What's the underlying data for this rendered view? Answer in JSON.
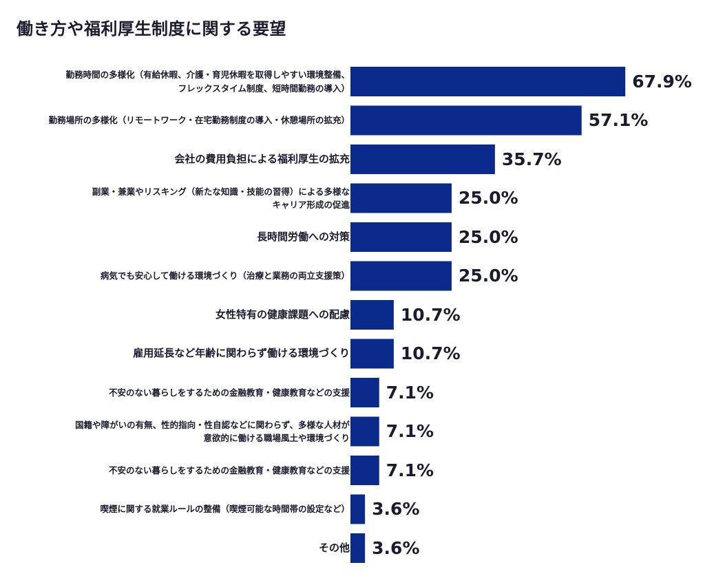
{
  "chart_data": {
    "type": "bar",
    "orientation": "horizontal",
    "title": "働き方や福利厚生制度に関する要望",
    "xlim": [
      0,
      100
    ],
    "bar_color": "#0a2a8c",
    "categories": [
      "勤務時間の多様化（有給休暇、介護・育児休暇を取得しやすい環境整備、\nフレックスタイム制度、短時間勤務の導入）",
      "勤務場所の多様化（リモートワーク・在宅勤務制度の導入・休憩場所の拡充）",
      "会社の費用負担による福利厚生の拡充",
      "副業・兼業やリスキング（新たな知識・技能の習得）による多様な\nキャリア形成の促進",
      "長時間労働への対策",
      "病気でも安心して働ける環境づくり（治療と業務の両立支援策）",
      "女性特有の健康課題への配慮",
      "雇用延長など年齢に関わらず働ける環境づくり",
      "不安のない暮らしをするための金融教育・健康教育などの支援",
      "国籍や障がいの有無、性的指向・性自認などに関わらず、多様な人材が\n意欲的に働ける職場風土や環境づくり",
      "不安のない暮らしをするための金融教育・健康教育などの支援",
      "喫煙に関する就業ルールの整備（喫煙可能な時間帯の設定など）",
      "その他"
    ],
    "values": [
      67.9,
      57.1,
      35.7,
      25.0,
      25.0,
      25.0,
      10.7,
      10.7,
      7.1,
      7.1,
      7.1,
      3.6,
      3.6
    ],
    "value_labels": [
      "67.9%",
      "57.1%",
      "35.7%",
      "25.0%",
      "25.0%",
      "25.0%",
      "10.7%",
      "10.7%",
      "7.1%",
      "7.1%",
      "7.1%",
      "3.6%",
      "3.6%"
    ]
  }
}
